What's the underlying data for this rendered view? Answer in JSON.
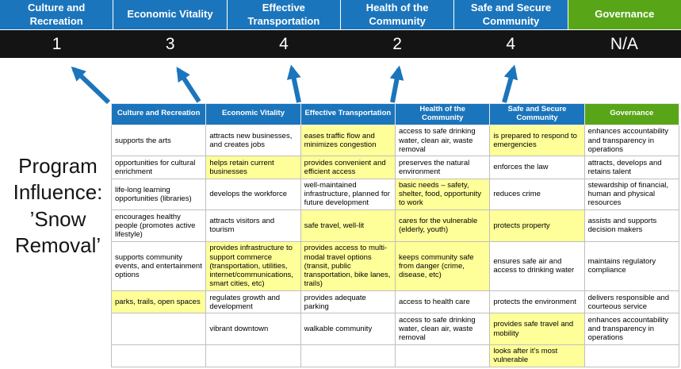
{
  "page_title": "Program\nInfluence:\n’Snow\nRemoval’",
  "colors": {
    "category_blue": "#1b75bc",
    "governance_green": "#58a618",
    "highlight_yellow": "#ffff99",
    "score_band_black": "#141414",
    "arrow_blue": "#1b75bc"
  },
  "summary": {
    "categories": [
      {
        "label": "Culture and Recreation",
        "score": "1",
        "color": "blue"
      },
      {
        "label": "Economic Vitality",
        "score": "3",
        "color": "blue"
      },
      {
        "label": "Effective Transportation",
        "score": "4",
        "color": "blue"
      },
      {
        "label": "Health of the Community",
        "score": "2",
        "color": "blue"
      },
      {
        "label": "Safe and Secure Community",
        "score": "4",
        "color": "blue"
      },
      {
        "label": "Governance",
        "score": "N/A",
        "color": "green"
      }
    ]
  },
  "matrix": {
    "headers": [
      {
        "label": "Culture and Recreation",
        "color": "blue"
      },
      {
        "label": "Economic Vitality",
        "color": "blue"
      },
      {
        "label": "Effective Transportation",
        "color": "blue"
      },
      {
        "label": "Health of the Community",
        "color": "blue"
      },
      {
        "label": "Safe and Secure Community",
        "color": "blue"
      },
      {
        "label": "Governance",
        "color": "green"
      }
    ],
    "rows": [
      [
        {
          "t": "supports the arts",
          "hl": false
        },
        {
          "t": "attracts new businesses, and creates jobs",
          "hl": false
        },
        {
          "t": "eases traffic flow and minimizes congestion",
          "hl": true
        },
        {
          "t": "access to safe drinking water, clean air, waste removal",
          "hl": false
        },
        {
          "t": "is prepared to respond to emergencies",
          "hl": true
        },
        {
          "t": "enhances accountability and transparency in operations",
          "hl": false
        }
      ],
      [
        {
          "t": "opportunities for cultural enrichment",
          "hl": false
        },
        {
          "t": "helps retain current businesses",
          "hl": true
        },
        {
          "t": "provides convenient and efficient access",
          "hl": true
        },
        {
          "t": "preserves the natural environment",
          "hl": false
        },
        {
          "t": "enforces the law",
          "hl": false
        },
        {
          "t": "attracts, develops and retains talent",
          "hl": false
        }
      ],
      [
        {
          "t": "life-long learning opportunities (libraries)",
          "hl": false
        },
        {
          "t": "develops the workforce",
          "hl": false
        },
        {
          "t": "well-maintained infrastructure, planned for future development",
          "hl": false
        },
        {
          "t": "basic needs – safety, shelter, food, opportunity to work",
          "hl": true
        },
        {
          "t": "reduces crime",
          "hl": false
        },
        {
          "t": "stewardship of financial, human and physical resources",
          "hl": false
        }
      ],
      [
        {
          "t": "encourages healthy people (promotes active lifestyle)",
          "hl": false
        },
        {
          "t": "attracts visitors and tourism",
          "hl": false
        },
        {
          "t": "safe travel, well-lit",
          "hl": true
        },
        {
          "t": "cares for the vulnerable (elderly, youth)",
          "hl": true
        },
        {
          "t": "protects property",
          "hl": true
        },
        {
          "t": "assists and supports decision makers",
          "hl": false
        }
      ],
      [
        {
          "t": "supports community events, and entertainment options",
          "hl": false
        },
        {
          "t": "provides infrastructure to support commerce (transportation, utilities, internet/communications, smart cities, etc)",
          "hl": true
        },
        {
          "t": "provides access to multi-modal travel options (transit, public transportation, bike lanes, trails)",
          "hl": true
        },
        {
          "t": "keeps community safe from danger (crime, disease, etc)",
          "hl": true
        },
        {
          "t": "ensures safe air and access to drinking water",
          "hl": false
        },
        {
          "t": "maintains regulatory compliance",
          "hl": false
        }
      ],
      [
        {
          "t": "parks, trails, open spaces",
          "hl": true
        },
        {
          "t": "regulates growth and development",
          "hl": false
        },
        {
          "t": "provides adequate parking",
          "hl": false
        },
        {
          "t": "access to health care",
          "hl": false
        },
        {
          "t": "protects the environment",
          "hl": false
        },
        {
          "t": "delivers responsible and courteous service",
          "hl": false
        }
      ],
      [
        {
          "t": "",
          "hl": false
        },
        {
          "t": "vibrant downtown",
          "hl": false
        },
        {
          "t": "walkable community",
          "hl": false
        },
        {
          "t": "access to safe drinking water, clean air, waste removal",
          "hl": false
        },
        {
          "t": "provides safe travel and mobility",
          "hl": true
        },
        {
          "t": "enhances accountability and transparency in operations",
          "hl": false
        }
      ],
      [
        {
          "t": "",
          "hl": false
        },
        {
          "t": "",
          "hl": false
        },
        {
          "t": "",
          "hl": false
        },
        {
          "t": "",
          "hl": false
        },
        {
          "t": "looks after it's most vulnerable",
          "hl": true
        },
        {
          "t": "",
          "hl": false
        }
      ]
    ]
  }
}
